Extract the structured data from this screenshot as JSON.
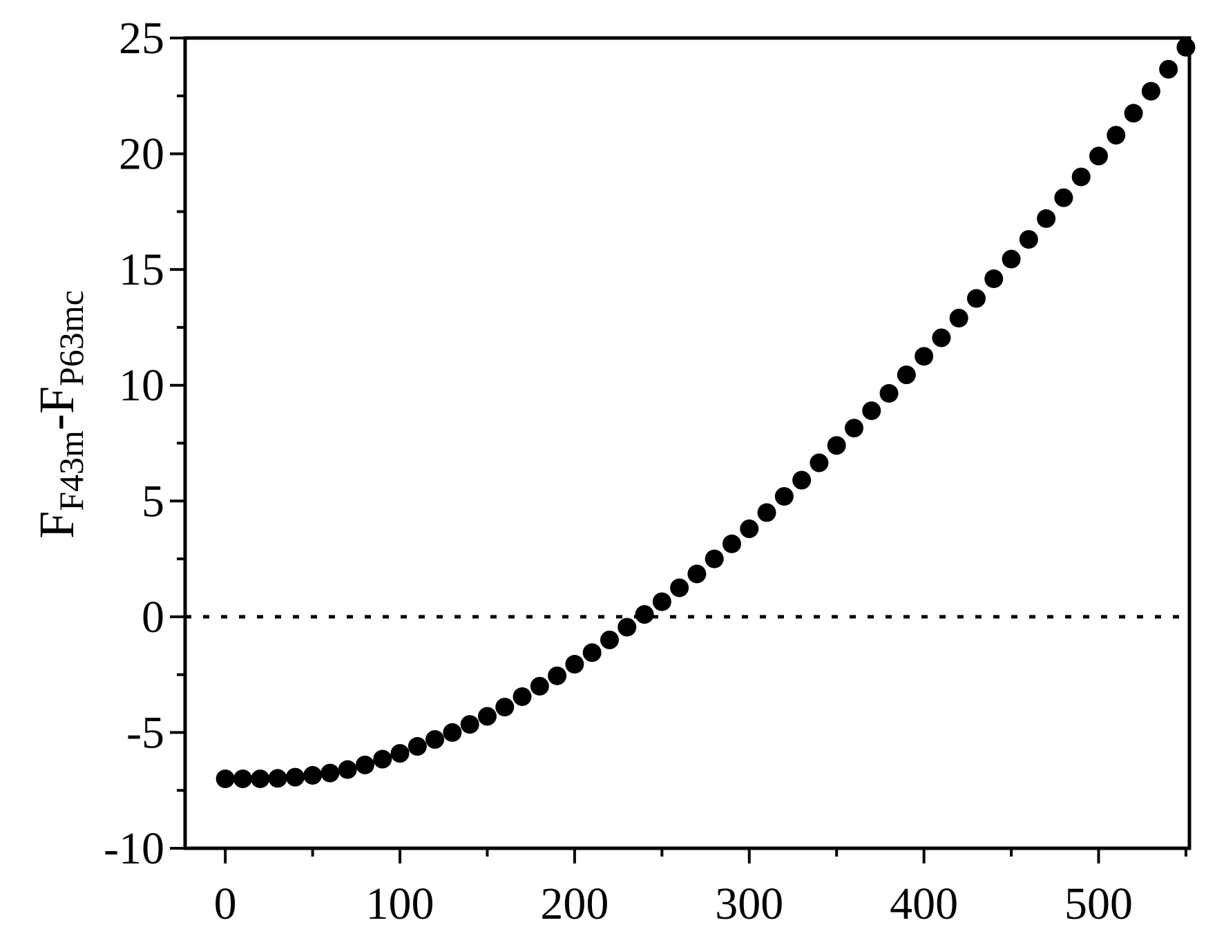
{
  "chart_data": {
    "type": "scatter",
    "title": "",
    "xlabel": "",
    "ylabel": {
      "main1": "F",
      "sub1": "F43m",
      "dash": "-F",
      "sub2": "P63mc"
    },
    "xlim": [
      -23,
      552
    ],
    "ylim": [
      -10,
      25
    ],
    "xticks": [
      0,
      100,
      200,
      300,
      400,
      500
    ],
    "yticks": [
      -10,
      -5,
      0,
      5,
      10,
      15,
      20,
      25
    ],
    "x_minor_step": 50,
    "y_minor_step": 2.5,
    "grid": false,
    "legend": "none",
    "reference_line": {
      "y": 0,
      "style": "dotted"
    },
    "marker_color": "#000000",
    "series": [
      {
        "x": [
          0,
          10,
          20,
          30,
          40,
          50,
          60,
          70,
          80,
          90,
          100,
          110,
          120,
          130,
          140,
          150,
          160,
          170,
          180,
          190,
          200,
          210,
          220,
          230,
          240,
          250,
          260,
          270,
          280,
          290,
          300,
          310,
          320,
          330,
          340,
          350,
          360,
          370,
          380,
          390,
          400,
          410,
          420,
          430,
          440,
          450,
          460,
          470,
          480,
          490,
          500,
          510,
          520,
          530,
          540,
          550
        ],
        "y": [
          -7.0,
          -7.0,
          -7.0,
          -6.98,
          -6.93,
          -6.85,
          -6.75,
          -6.6,
          -6.4,
          -6.15,
          -5.9,
          -5.6,
          -5.3,
          -5.0,
          -4.65,
          -4.3,
          -3.9,
          -3.45,
          -3.0,
          -2.55,
          -2.05,
          -1.55,
          -1.0,
          -0.45,
          0.1,
          0.65,
          1.25,
          1.85,
          2.5,
          3.15,
          3.8,
          4.5,
          5.2,
          5.9,
          6.65,
          7.4,
          8.15,
          8.9,
          9.65,
          10.45,
          11.25,
          12.05,
          12.9,
          13.75,
          14.6,
          15.45,
          16.3,
          17.2,
          18.1,
          19.0,
          19.9,
          20.8,
          21.75,
          22.7,
          23.65,
          24.6
        ]
      }
    ]
  }
}
